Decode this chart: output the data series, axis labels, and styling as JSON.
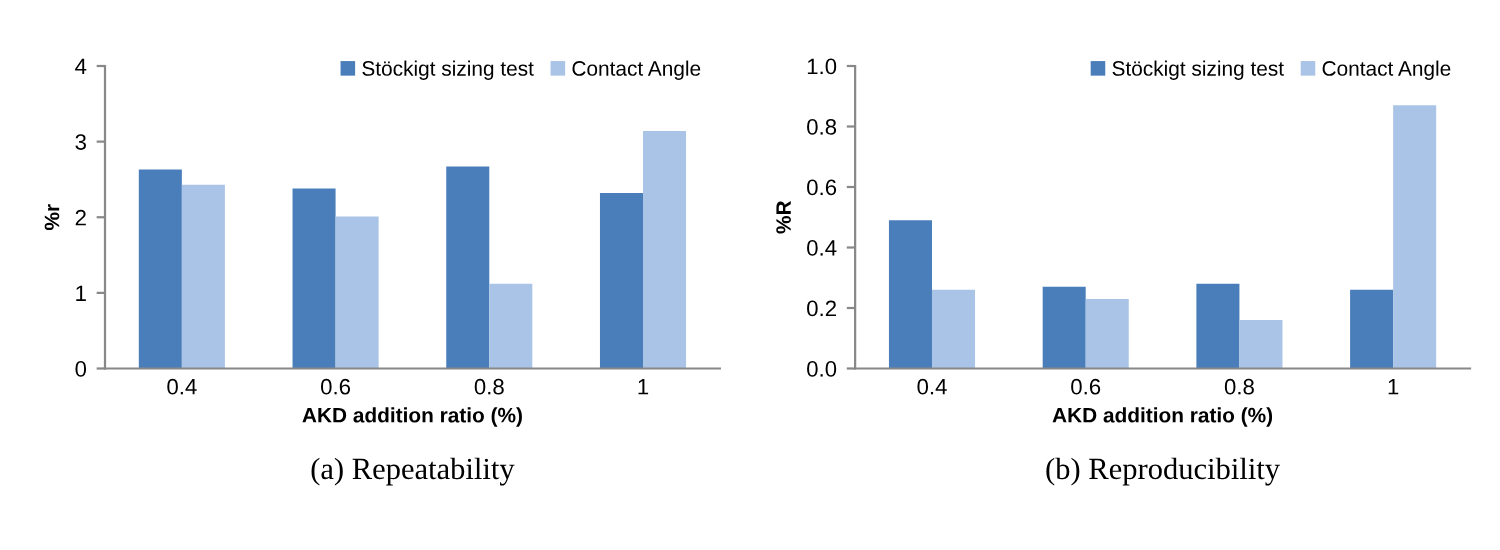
{
  "chart_data": [
    {
      "type": "bar",
      "title": "(a) Repeatability",
      "xlabel": "AKD addition ratio (%)",
      "ylabel": "%r",
      "categories": [
        "0.4",
        "0.6",
        "0.8",
        "1"
      ],
      "series": [
        {
          "name": "Stöckigt sizing test",
          "color": "#4a7ebb",
          "values": [
            2.63,
            2.38,
            2.67,
            2.32
          ]
        },
        {
          "name": "Contact Angle",
          "color": "#a9c4e6",
          "values": [
            2.43,
            2.01,
            1.12,
            3.14
          ]
        }
      ],
      "ylim": [
        0,
        4
      ],
      "yticks": [
        0,
        1,
        2,
        3,
        4
      ],
      "legend": "top right",
      "grid": false
    },
    {
      "type": "bar",
      "title": "(b) Reproducibility",
      "xlabel": "AKD addition ratio (%)",
      "ylabel": "%R",
      "categories": [
        "0.4",
        "0.6",
        "0.8",
        "1"
      ],
      "series": [
        {
          "name": "Stöckigt sizing test",
          "color": "#4a7ebb",
          "values": [
            0.49,
            0.27,
            0.28,
            0.26
          ]
        },
        {
          "name": "Contact Angle",
          "color": "#a9c4e6",
          "values": [
            0.26,
            0.23,
            0.16,
            0.87
          ]
        }
      ],
      "ylim": [
        0,
        1.0
      ],
      "yticks": [
        {
          "value": 0,
          "label": "0.0"
        },
        {
          "value": 0.2,
          "label": "0.2"
        },
        {
          "value": 0.4,
          "label": "0.4"
        },
        {
          "value": 0.6,
          "label": "0.6"
        },
        {
          "value": 0.8,
          "label": "0.8"
        },
        {
          "value": 1.0,
          "label": "1.0"
        }
      ],
      "legend": "top right",
      "grid": false
    }
  ]
}
